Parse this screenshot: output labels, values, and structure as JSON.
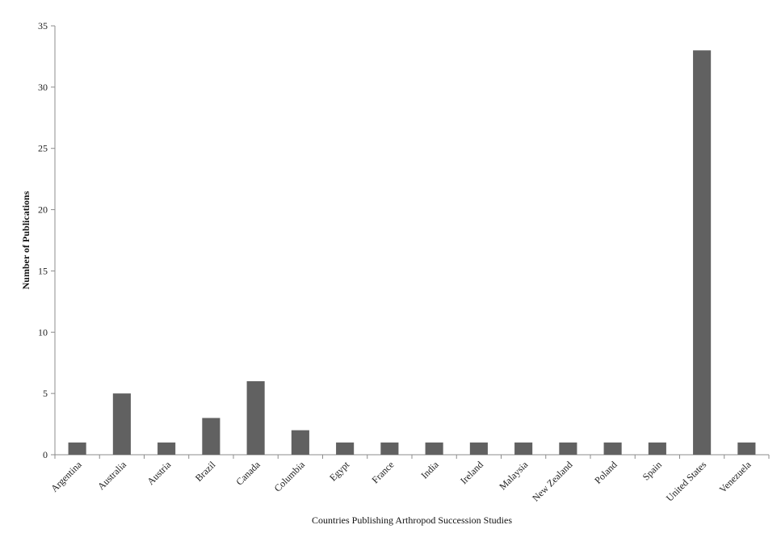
{
  "chart_data": {
    "type": "bar",
    "title": "",
    "xlabel": "Countries Publishing  Arthropod Succession Studies",
    "ylabel": "Number  of Publications",
    "ylim": [
      0,
      35
    ],
    "yticks": [
      0,
      5,
      10,
      15,
      20,
      25,
      30,
      35
    ],
    "grid": false,
    "legend": "none",
    "bar_color": "#616161",
    "categories": [
      "Argentina",
      "Australia",
      "Austria",
      "Brazil",
      "Canada",
      "Columbia",
      "Egypt",
      "France",
      "India",
      "Ireland",
      "Malaysia",
      "New Zealand",
      "Poland",
      "Spain",
      "United States",
      "Venezuela"
    ],
    "values": [
      1,
      5,
      1,
      3,
      6,
      2,
      1,
      1,
      1,
      1,
      1,
      1,
      1,
      1,
      33,
      1
    ]
  }
}
